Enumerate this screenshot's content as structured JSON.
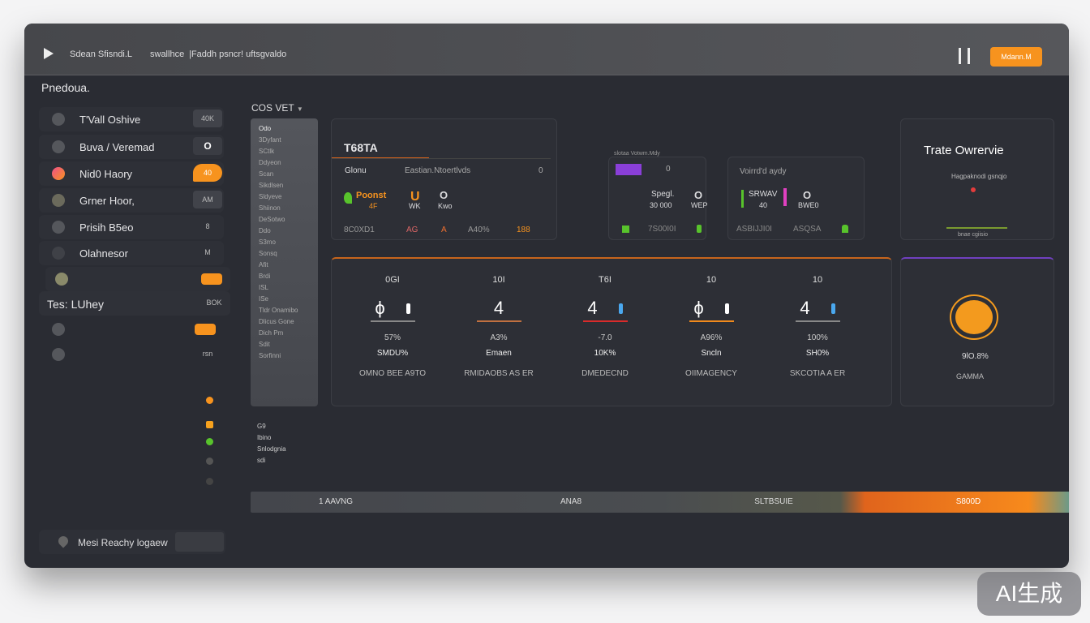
{
  "header": {
    "title": "Sdean Sfisndi.L",
    "nav": [
      "swallhce",
      "|Faddh psncr! uftsgvaldo"
    ],
    "button_label": "Mdann.M",
    "pause_icon": "pause-icon"
  },
  "sidebar": {
    "title": "Pnedoua.",
    "items": [
      {
        "label": "T'Vall Oshive",
        "badge": "40K",
        "icon": "eye-icon"
      },
      {
        "label": "Buva / Veremad",
        "badge": "O",
        "icon": "pen-icon"
      },
      {
        "label": "Nid0 Haory",
        "badge": "40",
        "icon": "flame-icon"
      },
      {
        "label": "Grner Hoor,",
        "badge": "AM",
        "icon": "circle-icon"
      },
      {
        "label": "Prisih B5eo",
        "badge": "8",
        "icon": "globe-icon"
      },
      {
        "label": "Olahnesor",
        "badge": "M",
        "icon": "tool-icon"
      },
      {
        "label": "",
        "badge": "",
        "icon": "coin-icon"
      }
    ],
    "section": {
      "label": "Tes: LUhey",
      "badge": "BOK"
    },
    "extra": [
      {
        "badge": "",
        "icon": "leaf-icon"
      },
      {
        "badge": "rsn",
        "icon": "atom-icon"
      }
    ],
    "footer": {
      "label": "Mesi Reachy logaew",
      "icon": "location-icon"
    }
  },
  "list_panel": {
    "title": "COS VET",
    "items": [
      "Odo",
      "3Dyfant",
      "SCtlk",
      "Ddyeon",
      "Scan",
      "Sikdlsen",
      "Sldyeve",
      "Shiinon",
      "DeSotwo",
      "Ddo",
      "S3mo",
      "Sonsq",
      "Afit",
      "Brdi",
      "ISL",
      "ISe",
      "Tldr Onamibo",
      "Dlicus Gone",
      "Dich Pm",
      "Sdit",
      "Sorfinni"
    ],
    "below": [
      "G9",
      "Ibino",
      "Snlodgnia",
      "sdi"
    ]
  },
  "cards": {
    "c1": {
      "title": "T68TA",
      "row1": [
        "Glonu",
        "Eastian.Ntoertlvds",
        "0"
      ],
      "stat_main": "Poonst",
      "stat_sub": "4F",
      "stat2": "WK",
      "stat3": "Kwo",
      "stat3_value": "O",
      "footer": [
        "8C0XD1",
        "AG",
        "A",
        "A40%",
        "188"
      ]
    },
    "c2": {
      "title": "slotaa Votwm.Mdy",
      "row1": "0",
      "stat_a": "Spegl.",
      "stat_b": "30 000",
      "value": "O",
      "value_sub": "WEP",
      "footer": [
        "7S00I0I"
      ]
    },
    "c3": {
      "title": "Voirrd'd aydy",
      "stat_a": "SRWAV",
      "stat_b": "40",
      "value": "O",
      "value_sub": "BWE0",
      "footer": [
        "ASBIJJI0I",
        "ASQSA"
      ]
    },
    "c4": {
      "title": "Trate Owrervie",
      "subtitle": "Hagpaknodi gsnqjo",
      "footer": "bnae cgiisio"
    }
  },
  "metrics": [
    {
      "value": "0GI",
      "glyph": "ϕ",
      "pct": "57%",
      "sub": "SMDU%",
      "name": "OMNO BEE A9TO",
      "accent": "#888888",
      "pill": "#ffffff"
    },
    {
      "value": "10I",
      "glyph": "4",
      "pct": "A3%",
      "sub": "Emaen",
      "name": "RMIDAOBS AS ER",
      "accent": "#c07040",
      "pill": ""
    },
    {
      "value": "T6I",
      "glyph": "4",
      "pct": "-7.0",
      "sub": "10K%",
      "name": "DMEDECND",
      "accent": "#d92b2b",
      "pill": "#4aa8ef"
    },
    {
      "value": "10",
      "glyph": "ϕ",
      "pct": "A96%",
      "sub": "Sncln",
      "name": "OIIMAGENCY",
      "accent": "#f08a1c",
      "pill": "#ffffff"
    },
    {
      "value": "10",
      "glyph": "4",
      "pct": "100%",
      "sub": "SH0%",
      "name": "SKCOTIA A ER",
      "accent": "#888888",
      "pill": "#4aa8ef"
    }
  ],
  "gauge": {
    "value": "9lO.8%",
    "label": "GAMMA",
    "color": "#f39a1e"
  },
  "progress": {
    "segments": [
      "1 AAVNG",
      "ANA8",
      "SLTBSUIE",
      "S800D"
    ],
    "fraction": 0.86
  },
  "colors": {
    "accent": "#f7931e",
    "green": "#58c32c",
    "purple": "#8a3fd8",
    "red": "#e33c3c",
    "blue": "#4aa8ef"
  },
  "watermark": "AI生成"
}
